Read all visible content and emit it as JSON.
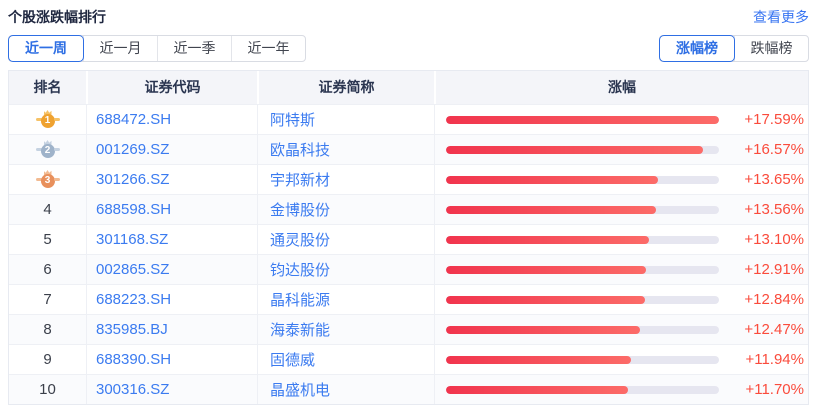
{
  "header": {
    "title": "个股涨跌幅排行",
    "more_link": "查看更多"
  },
  "period_tabs": [
    {
      "label": "近一周",
      "active": true
    },
    {
      "label": "近一月",
      "active": false
    },
    {
      "label": "近一季",
      "active": false
    },
    {
      "label": "近一年",
      "active": false
    }
  ],
  "board_tabs": [
    {
      "label": "涨幅榜",
      "active": true
    },
    {
      "label": "跌幅榜",
      "active": false
    }
  ],
  "chart_data": {
    "type": "bar",
    "title": "个股涨跌幅排行 - 近一周 涨幅榜",
    "categories": [
      "阿特斯",
      "欧晶科技",
      "宇邦新材",
      "金博股份",
      "通灵股份",
      "钧达股份",
      "晶科能源",
      "海泰新能",
      "固德威",
      "晶盛机电"
    ],
    "values": [
      17.59,
      16.57,
      13.65,
      13.56,
      13.1,
      12.91,
      12.84,
      12.47,
      11.94,
      11.7
    ],
    "xlabel": "证券简称",
    "ylabel": "涨幅(%)",
    "ylim": [
      0,
      17.59
    ]
  },
  "table": {
    "columns": [
      "排名",
      "证券代码",
      "证券简称",
      "涨幅"
    ],
    "max_value": 17.59,
    "rows": [
      {
        "rank": 1,
        "code": "688472.SH",
        "name": "阿特斯",
        "change": "+17.59%",
        "value": 17.59
      },
      {
        "rank": 2,
        "code": "001269.SZ",
        "name": "欧晶科技",
        "change": "+16.57%",
        "value": 16.57
      },
      {
        "rank": 3,
        "code": "301266.SZ",
        "name": "宇邦新材",
        "change": "+13.65%",
        "value": 13.65
      },
      {
        "rank": 4,
        "code": "688598.SH",
        "name": "金博股份",
        "change": "+13.56%",
        "value": 13.56
      },
      {
        "rank": 5,
        "code": "301168.SZ",
        "name": "通灵股份",
        "change": "+13.10%",
        "value": 13.1
      },
      {
        "rank": 6,
        "code": "002865.SZ",
        "name": "钧达股份",
        "change": "+12.91%",
        "value": 12.91
      },
      {
        "rank": 7,
        "code": "688223.SH",
        "name": "晶科能源",
        "change": "+12.84%",
        "value": 12.84
      },
      {
        "rank": 8,
        "code": "835985.BJ",
        "name": "海泰新能",
        "change": "+12.47%",
        "value": 12.47
      },
      {
        "rank": 9,
        "code": "688390.SH",
        "name": "固德威",
        "change": "+11.94%",
        "value": 11.94
      },
      {
        "rank": 10,
        "code": "300316.SZ",
        "name": "晶盛机电",
        "change": "+11.70%",
        "value": 11.7
      }
    ]
  },
  "colors": {
    "accent_blue": "#2f6fe4",
    "link_blue": "#3875f2",
    "code_blue": "#3b7bf0",
    "gain_red": "#fa4b3c",
    "bar_gradient_start": "#f1344d",
    "bar_gradient_end": "#fc6b68",
    "bar_track": "#e6e6f0",
    "header_bg": "#f4f5f9",
    "medal_gold": "#efa230",
    "medal_silver": "#9fb3ca",
    "medal_bronze": "#e8905c"
  }
}
